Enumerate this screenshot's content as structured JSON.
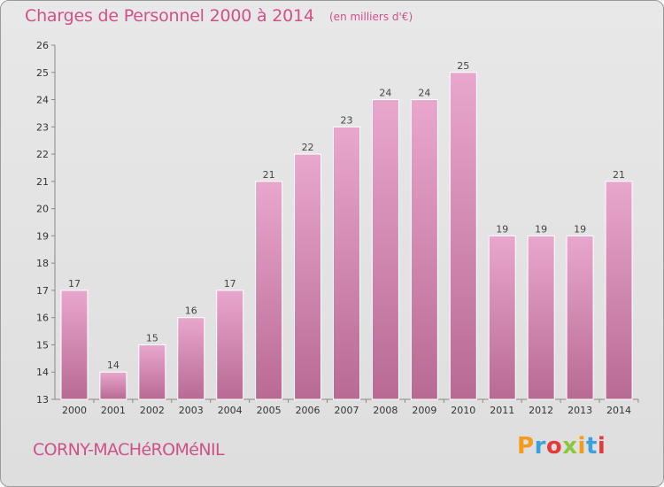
{
  "header": {
    "title": "Charges de Personnel 2000 à 2014",
    "subtitle": "(en milliers d'€)"
  },
  "footer": {
    "commune": "CORNY-MACHéROMéNIL",
    "brand": "Proxiti",
    "brand_colors": [
      "#f39c1b",
      "#3aa0de",
      "#e23b3b",
      "#8cc63f",
      "#f39c1b",
      "#3aa0de",
      "#e23b3b"
    ]
  },
  "chart_data": {
    "type": "bar",
    "categories": [
      "2000",
      "2001",
      "2002",
      "2003",
      "2004",
      "2005",
      "2006",
      "2007",
      "2008",
      "2009",
      "2010",
      "2011",
      "2012",
      "2013",
      "2014"
    ],
    "values": [
      17,
      14,
      15,
      16,
      17,
      21,
      22,
      23,
      24,
      24,
      25,
      19,
      19,
      19,
      21
    ],
    "data_labels": [
      "17",
      "14",
      "15",
      "16",
      "17",
      "21",
      "22",
      "23",
      "24",
      "24",
      "25",
      "19",
      "19",
      "19",
      "21"
    ],
    "ylim": [
      13,
      26
    ],
    "yticks": [
      13,
      14,
      15,
      16,
      17,
      18,
      19,
      20,
      21,
      22,
      23,
      24,
      25,
      26
    ],
    "grid": false,
    "bar_color_top": "#e9a7cd",
    "bar_color_bottom": "#b86a93"
  }
}
